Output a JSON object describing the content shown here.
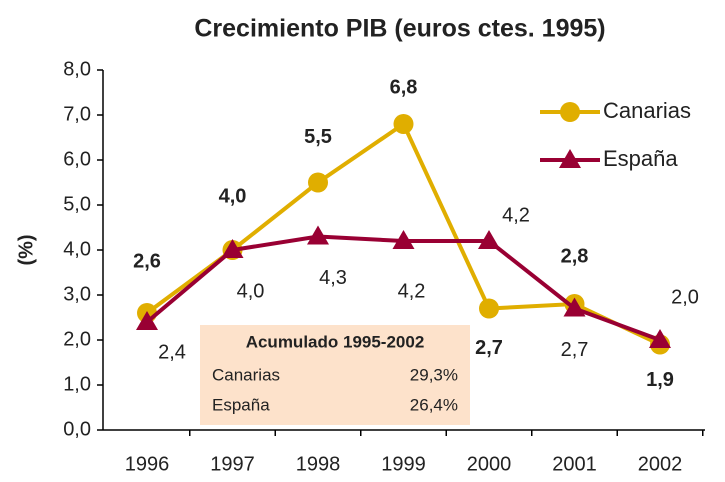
{
  "chart_data": {
    "type": "line",
    "title": "Crecimiento PIB (euros ctes. 1995)",
    "ylabel": "(%)",
    "categories": [
      "1996",
      "1997",
      "1998",
      "1999",
      "2000",
      "2001",
      "2002"
    ],
    "series": [
      {
        "name": "Canarias",
        "color": "#e0ae00",
        "marker": "circle",
        "values": [
          2.6,
          4.0,
          5.5,
          6.8,
          2.7,
          2.8,
          1.9
        ],
        "value_labels": [
          "2,6",
          "4,0",
          "5,5",
          "6,8",
          "2,7",
          "2,8",
          "1,9"
        ]
      },
      {
        "name": "España",
        "color": "#990033",
        "marker": "triangle",
        "values": [
          2.4,
          4.0,
          4.3,
          4.2,
          4.2,
          2.7,
          2.0
        ],
        "value_labels": [
          "2,4",
          "4,0",
          "4,3",
          "4,2",
          "4,2",
          "2,7",
          "2,0"
        ]
      }
    ],
    "ylim": [
      0,
      8
    ],
    "yticks": [
      {
        "value": 0,
        "label": "0,0"
      },
      {
        "value": 1,
        "label": "1,0"
      },
      {
        "value": 2,
        "label": "2,0"
      },
      {
        "value": 3,
        "label": "3,0"
      },
      {
        "value": 4,
        "label": "4,0"
      },
      {
        "value": 5,
        "label": "5,0"
      },
      {
        "value": 6,
        "label": "6,0"
      },
      {
        "value": 7,
        "label": "7,0"
      },
      {
        "value": 8,
        "label": "8,0"
      }
    ],
    "grid": false,
    "legend": "upper right"
  },
  "table": {
    "title": "Acumulado 1995-2002",
    "rows": [
      [
        "Canarias",
        "29,3%"
      ],
      [
        "España",
        "26,4%"
      ]
    ]
  }
}
